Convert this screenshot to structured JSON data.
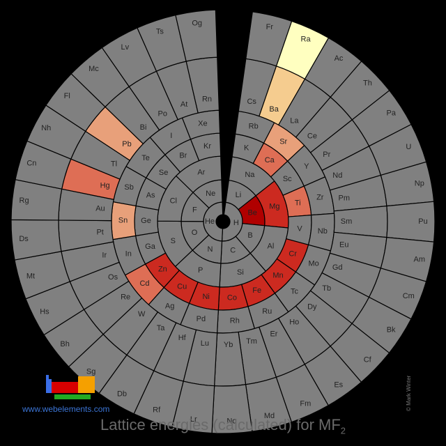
{
  "title": {
    "main": "Lattice energies (calculated) for MF",
    "subscript": "2"
  },
  "site_link": "www.webelements.com",
  "credit": "© Mark Winter",
  "colors": {
    "no_data": "#808080",
    "background": "#000000",
    "scale": [
      "#ffffc0",
      "#f5cc8f",
      "#e8a07a",
      "#de6e55",
      "#cc2a20",
      "#b00000"
    ]
  },
  "chart_data": {
    "type": "heatmap",
    "layout": "spiral periodic table",
    "units": "relative lattice energy colour scale (darker red = larger)",
    "data": [
      {
        "element": "Be",
        "value": 1.0
      },
      {
        "element": "Mg",
        "value": 0.8
      },
      {
        "element": "Ca",
        "value": 0.55
      },
      {
        "element": "Sr",
        "value": 0.35
      },
      {
        "element": "Ba",
        "value": 0.15
      },
      {
        "element": "Ra",
        "value": 0.0
      },
      {
        "element": "Ti",
        "value": 0.6
      },
      {
        "element": "Cr",
        "value": 0.7
      },
      {
        "element": "Mn",
        "value": 0.72
      },
      {
        "element": "Fe",
        "value": 0.75
      },
      {
        "element": "Co",
        "value": 0.78
      },
      {
        "element": "Ni",
        "value": 0.8
      },
      {
        "element": "Cu",
        "value": 0.85
      },
      {
        "element": "Zn",
        "value": 0.78
      },
      {
        "element": "Cd",
        "value": 0.68
      },
      {
        "element": "Hg",
        "value": 0.62
      },
      {
        "element": "Sn",
        "value": 0.4
      },
      {
        "element": "Pb",
        "value": 0.3
      }
    ]
  },
  "spiral": [
    [
      "H",
      "He"
    ],
    [
      "Li",
      "Be",
      "B",
      "C",
      "N",
      "O",
      "F",
      "Ne"
    ],
    [
      "Na",
      "Mg",
      "Al",
      "Si",
      "P",
      "S",
      "Cl",
      "Ar"
    ],
    [
      "K",
      "Ca",
      "Sc",
      "Ti",
      "V",
      "Cr",
      "Mn",
      "Fe",
      "Co",
      "Ni",
      "Cu",
      "Zn",
      "Ga",
      "Ge",
      "As",
      "Se",
      "Br",
      "Kr"
    ],
    [
      "Rb",
      "Sr",
      "Y",
      "Zr",
      "Nb",
      "Mo",
      "Tc",
      "Ru",
      "Rh",
      "Pd",
      "Ag",
      "Cd",
      "In",
      "Sn",
      "Sb",
      "Te",
      "I",
      "Xe"
    ],
    [
      "Cs",
      "Ba",
      "La",
      "Ce",
      "Pr",
      "Nd",
      "Pm",
      "Sm",
      "Eu",
      "Gd",
      "Tb",
      "Dy",
      "Ho",
      "Er",
      "Tm",
      "Yb",
      "Lu",
      "Hf",
      "Ta",
      "W",
      "Re",
      "Os",
      "Ir",
      "Pt",
      "Au",
      "Hg",
      "Tl",
      "Pb",
      "Bi",
      "Po",
      "At",
      "Rn"
    ],
    [
      "Fr",
      "Ra",
      "Ac",
      "Th",
      "Pa",
      "U",
      "Np",
      "Pu",
      "Am",
      "Cm",
      "Bk",
      "Cf",
      "Es",
      "Fm",
      "Md",
      "No",
      "Lr",
      "Rf",
      "Db",
      "Sg",
      "Bh",
      "Hs",
      "Mt",
      "Ds",
      "Rg",
      "Cn",
      "Nh",
      "Fl",
      "Mc",
      "Lv",
      "Ts",
      "Og"
    ]
  ]
}
